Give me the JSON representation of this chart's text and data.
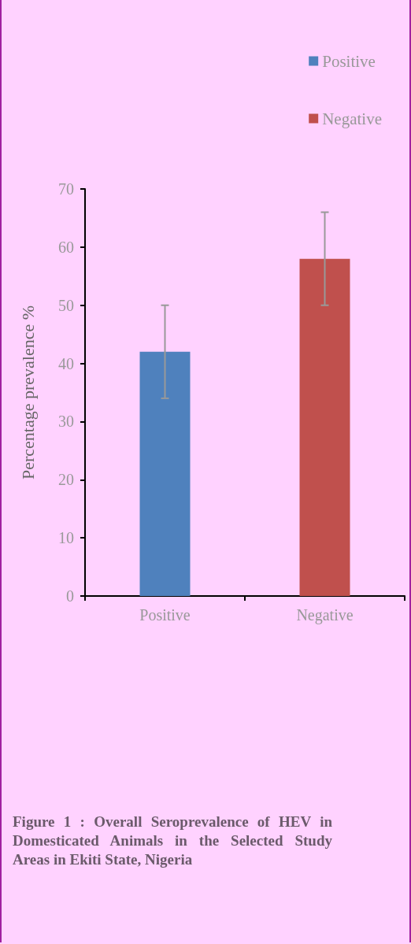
{
  "chart_data": {
    "type": "bar",
    "categories": [
      "Positive",
      "Negative"
    ],
    "stacked": true,
    "series": [
      {
        "name": "Positive",
        "color": "#4f81bd",
        "values": [
          42,
          null
        ],
        "errors": [
          8,
          null
        ]
      },
      {
        "name": "Negative",
        "color": "#c0504d",
        "values": [
          null,
          58
        ],
        "errors": [
          null,
          8
        ]
      }
    ],
    "ylabel": "Percentage prevalence %",
    "ylim": [
      0,
      70
    ],
    "yticks": [
      0,
      10,
      20,
      30,
      40,
      50,
      60,
      70
    ],
    "legend": "top right",
    "annotations": [
      "Figure 1 : Overall Seroprevalence of HEV in Domesticated Animals in the Selected Study Areas in Ekiti State, Nigeria"
    ]
  }
}
